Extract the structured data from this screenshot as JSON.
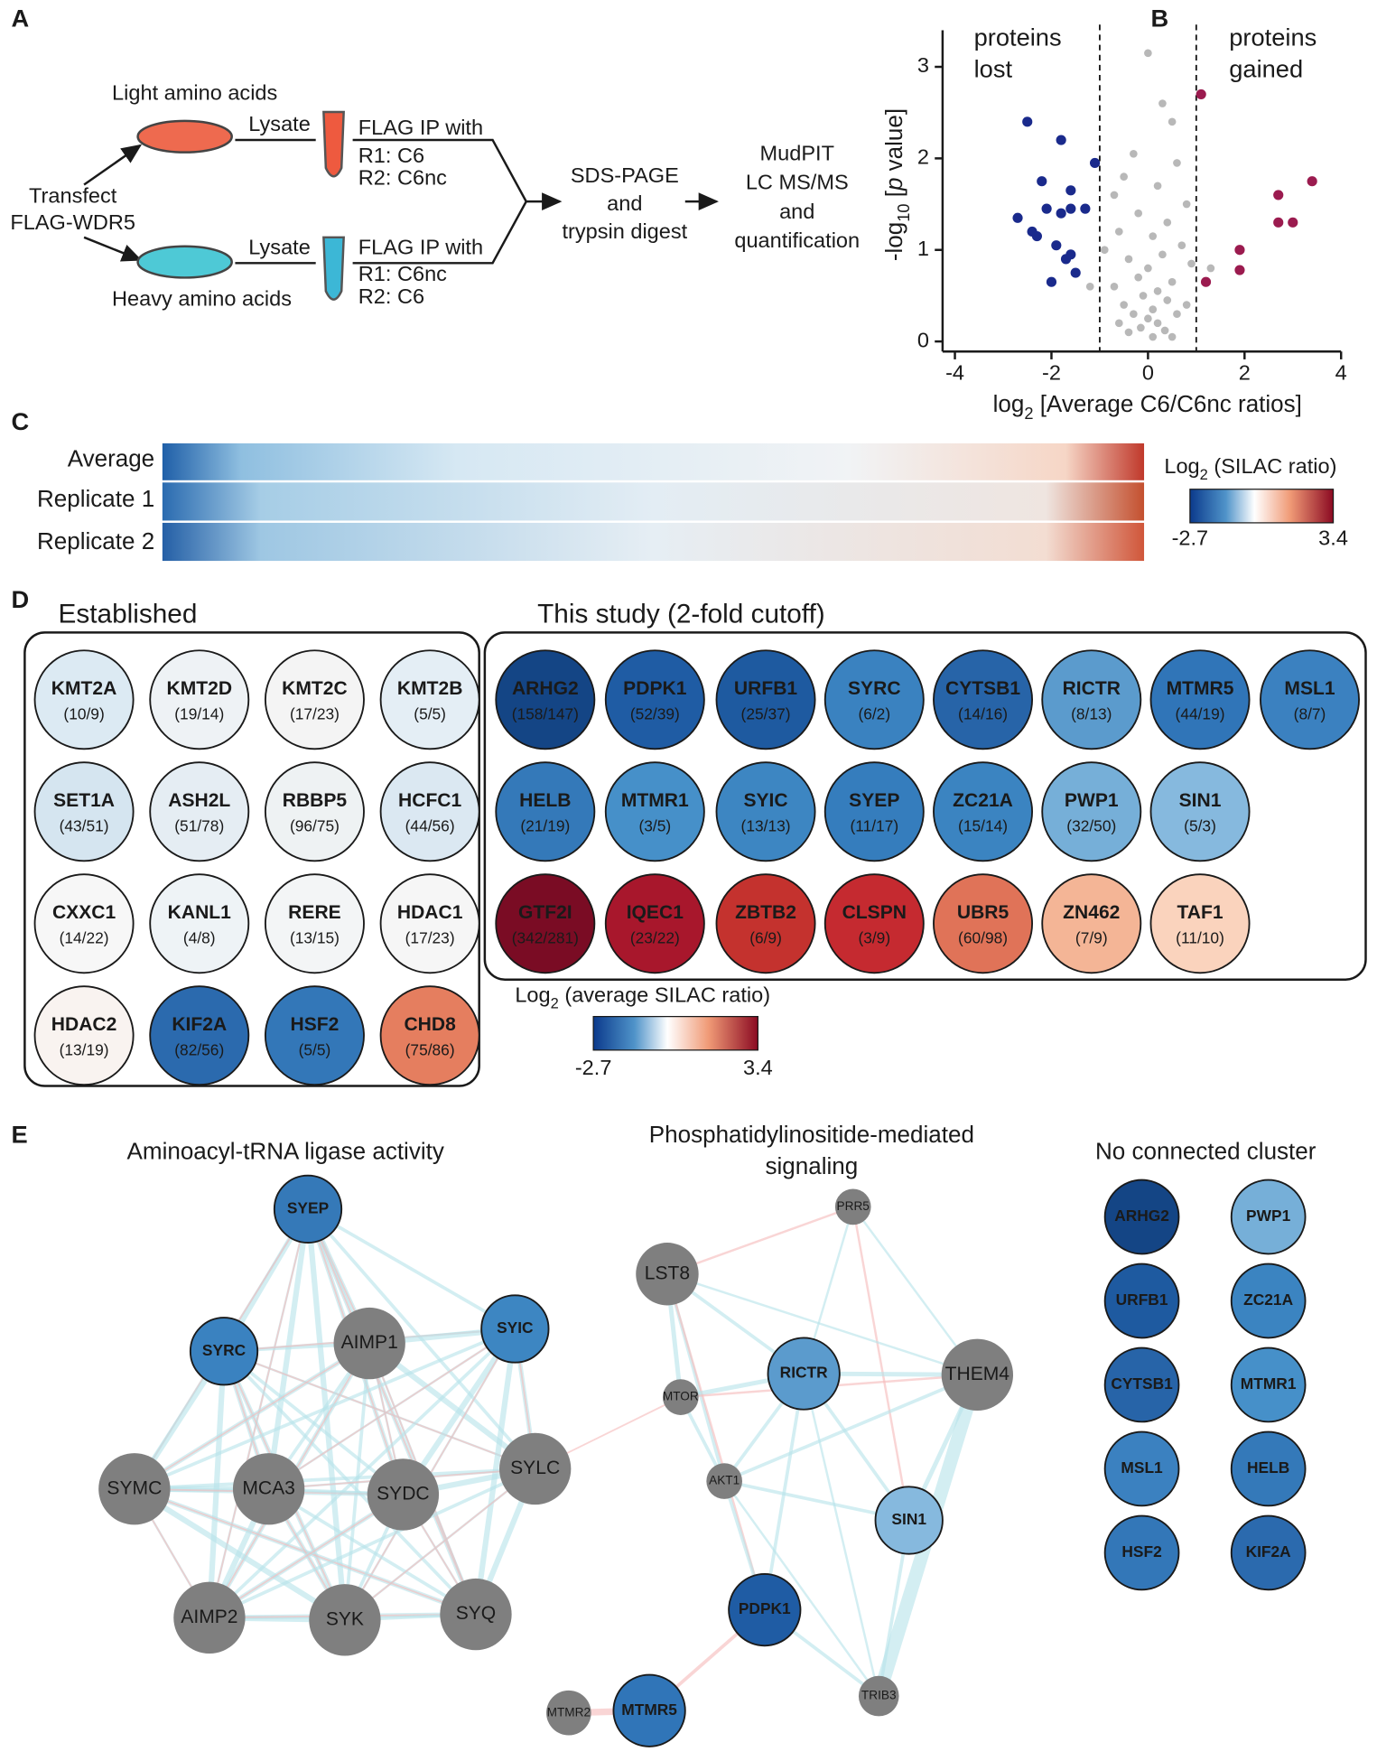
{
  "panel_labels": [
    "A",
    "B",
    "C",
    "D",
    "E"
  ],
  "panel_a": {
    "light": "Light amino acids",
    "heavy": "Heavy amino acids",
    "lysate_top": "Lysate",
    "lysate_bottom": "Lysate",
    "transfect": [
      "Transfect",
      "FLAG-WDR5"
    ],
    "ip_top": [
      "FLAG IP with",
      "R1: C6",
      "R2: C6nc"
    ],
    "ip_bottom": [
      "FLAG IP with",
      "R1: C6nc",
      "R2: C6"
    ],
    "sds": [
      "SDS-PAGE",
      "and",
      "trypsin digest"
    ],
    "mudpit": [
      "MudPIT",
      "LC MS/MS",
      "and",
      "quantification"
    ]
  },
  "chart_data": {
    "type": "scatter",
    "x_label": [
      "log",
      "2",
      " [Average C6/C6nc ratios]"
    ],
    "y_label": [
      "-log",
      "10",
      " [",
      "p",
      " value]"
    ],
    "annotations": [
      [
        "proteins",
        "lost"
      ],
      [
        "proteins",
        "gained"
      ]
    ],
    "thresholds": [
      -1,
      1
    ],
    "xlim": [
      -4,
      4
    ],
    "ylim": [
      0,
      3.4
    ],
    "xticks": [
      -4,
      -2,
      0,
      2,
      4
    ],
    "yticks": [
      0,
      1,
      2,
      3
    ],
    "series": [
      {
        "color": "#b8b8b8",
        "x": [
          0,
          0.5,
          0.3,
          -0.3,
          0.6,
          -0.5,
          0.2,
          -0.7,
          0.8,
          -0.2,
          0.4,
          -0.6,
          0.1,
          0.7,
          -0.9,
          0.3,
          -0.4,
          0.9,
          0,
          -0.2,
          0.5,
          -0.7,
          0.2,
          -0.1,
          0.4,
          -0.5,
          0.1,
          0.6,
          -0.3,
          0,
          0.2,
          -0.15,
          0.35,
          -0.4,
          0.1,
          0.5,
          -0.6,
          0.8,
          -1.2,
          1.3
        ],
        "values": [
          3.15,
          2.4,
          2.6,
          2.05,
          1.95,
          1.8,
          1.7,
          1.6,
          1.5,
          1.4,
          1.3,
          1.2,
          1.15,
          1.05,
          1.0,
          0.95,
          0.9,
          0.85,
          0.8,
          0.7,
          0.65,
          0.6,
          0.55,
          0.5,
          0.45,
          0.4,
          0.35,
          0.3,
          0.3,
          0.25,
          0.2,
          0.15,
          0.12,
          0.1,
          0.05,
          0.05,
          0.2,
          0.4,
          0.6,
          0.8
        ]
      },
      {
        "color": "#1a2a8c",
        "x": [
          -2.5,
          -1.8,
          -2.2,
          -1.6,
          -1.1,
          -2.7,
          -2.1,
          -1.8,
          -1.6,
          -1.3,
          -2.3,
          -1.9,
          -1.7,
          -1.6,
          -2.0,
          -1.5,
          -2.4
        ],
        "values": [
          2.4,
          2.2,
          1.75,
          1.65,
          1.95,
          1.35,
          1.45,
          1.4,
          1.45,
          1.45,
          1.15,
          1.05,
          0.9,
          0.95,
          0.65,
          0.75,
          1.2
        ]
      },
      {
        "color": "#9b1b4f",
        "x": [
          1.1,
          3.4,
          2.7,
          2.7,
          3.0,
          1.9,
          1.9,
          1.2
        ],
        "values": [
          2.7,
          1.75,
          1.6,
          1.3,
          1.3,
          1.0,
          0.78,
          0.65
        ]
      }
    ]
  },
  "panel_c": {
    "rows": [
      "Average",
      "Replicate 1",
      "Replicate 2"
    ],
    "colorbar": {
      "label": [
        "Log",
        "2",
        " (SILAC ratio)"
      ],
      "min": -2.7,
      "max": 3.4
    }
  },
  "panel_d": {
    "established": {
      "title": "Established",
      "nodes": [
        {
          "name": "KMT2A",
          "counts": "(10/9)",
          "color": "#dceaf3"
        },
        {
          "name": "KMT2D",
          "counts": "(19/14)",
          "color": "#eef2f5"
        },
        {
          "name": "KMT2C",
          "counts": "(17/23)",
          "color": "#f4f4f4"
        },
        {
          "name": "KMT2B",
          "counts": "(5/5)",
          "color": "#e4eef5"
        },
        {
          "name": "SET1A",
          "counts": "(43/51)",
          "color": "#d5e5f0"
        },
        {
          "name": "ASH2L",
          "counts": "(51/78)",
          "color": "#e5edf3"
        },
        {
          "name": "RBBP5",
          "counts": "(96/75)",
          "color": "#eef2f3"
        },
        {
          "name": "HCFC1",
          "counts": "(44/56)",
          "color": "#dbe8f2"
        },
        {
          "name": "CXXC1",
          "counts": "(14/22)",
          "color": "#f7f7f7"
        },
        {
          "name": "KANL1",
          "counts": "(4/8)",
          "color": "#eef3f6"
        },
        {
          "name": "RERE",
          "counts": "(13/15)",
          "color": "#f3f5f6"
        },
        {
          "name": "HDAC1",
          "counts": "(17/23)",
          "color": "#f6f6f6"
        },
        {
          "name": "HDAC2",
          "counts": "(13/19)",
          "color": "#f9f3f0"
        },
        {
          "name": "KIF2A",
          "counts": "(82/56)",
          "color": "#2b6aae"
        },
        {
          "name": "HSF2",
          "counts": "(5/5)",
          "color": "#3377b8"
        },
        {
          "name": "CHD8",
          "counts": "(75/86)",
          "color": "#e57e5f"
        }
      ]
    },
    "study": {
      "title": "This study (2-fold cutoff)",
      "nodes": [
        {
          "name": "ARHG2",
          "counts": "(158/147)",
          "color": "#144585"
        },
        {
          "name": "PDPK1",
          "counts": "(52/39)",
          "color": "#1f5ca4"
        },
        {
          "name": "URFB1",
          "counts": "(25/37)",
          "color": "#1e5aa0"
        },
        {
          "name": "SYRC",
          "counts": "(6/2)",
          "color": "#3a82c0"
        },
        {
          "name": "CYTSB1",
          "counts": "(14/16)",
          "color": "#2764a8"
        },
        {
          "name": "RICTR",
          "counts": "(8/13)",
          "color": "#5b9bcd"
        },
        {
          "name": "MTMR5",
          "counts": "(44/19)",
          "color": "#3075b8"
        },
        {
          "name": "MSL1",
          "counts": "(8/7)",
          "color": "#3b81c0"
        },
        {
          "name": "HELB",
          "counts": "(21/19)",
          "color": "#3479b9"
        },
        {
          "name": "MTMR1",
          "counts": "(3/5)",
          "color": "#4690c9"
        },
        {
          "name": "SYIC",
          "counts": "(13/13)",
          "color": "#3d86c2"
        },
        {
          "name": "SYEP",
          "counts": "(11/17)",
          "color": "#357dbd"
        },
        {
          "name": "ZC21A",
          "counts": "(15/14)",
          "color": "#3b84c1"
        },
        {
          "name": "PWP1",
          "counts": "(32/50)",
          "color": "#76afd8"
        },
        {
          "name": "SIN1",
          "counts": "(5/3)",
          "color": "#86b9de"
        },
        {
          "name": "GTF2I",
          "counts": "(342/281)",
          "color": "#7a0c24"
        },
        {
          "name": "IQEC1",
          "counts": "(23/22)",
          "color": "#a8172c"
        },
        {
          "name": "ZBTB2",
          "counts": "(6/9)",
          "color": "#c4322e"
        },
        {
          "name": "CLSPN",
          "counts": "(3/9)",
          "color": "#c52a30"
        },
        {
          "name": "UBR5",
          "counts": "(60/98)",
          "color": "#e07358"
        },
        {
          "name": "ZN462",
          "counts": "(7/9)",
          "color": "#f4b596"
        },
        {
          "name": "TAF1",
          "counts": "(11/10)",
          "color": "#fad3bd"
        }
      ]
    },
    "colorbar": {
      "label": [
        "Log",
        "2",
        " (average SILAC ratio)"
      ],
      "min": -2.7,
      "max": 3.4
    }
  },
  "panel_e": {
    "clusters": [
      {
        "title": [
          "Aminoacyl-tRNA ligase activity"
        ],
        "nodes": [
          {
            "label": "SYEP",
            "color": "#3579b8"
          },
          {
            "label": "SYRC",
            "color": "#3a82c0"
          },
          {
            "label": "AIMP1",
            "color": "#7f7f7f"
          },
          {
            "label": "SYIC",
            "color": "#3d86c2"
          },
          {
            "label": "SYMC",
            "color": "#7f7f7f"
          },
          {
            "label": "MCA3",
            "color": "#7f7f7f"
          },
          {
            "label": "SYDC",
            "color": "#7f7f7f"
          },
          {
            "label": "SYLC",
            "color": "#7f7f7f"
          },
          {
            "label": "AIMP2",
            "color": "#7f7f7f"
          },
          {
            "label": "SYK",
            "color": "#7f7f7f"
          },
          {
            "label": "SYQ",
            "color": "#7f7f7f"
          }
        ]
      },
      {
        "title": [
          "Phosphatidylinositide-mediated",
          "signaling"
        ],
        "nodes": [
          {
            "label": "PRR5",
            "color": "#7f7f7f"
          },
          {
            "label": "LST8",
            "color": "#7f7f7f"
          },
          {
            "label": "MTOR",
            "color": "#7f7f7f"
          },
          {
            "label": "RICTR",
            "color": "#5b9bcd"
          },
          {
            "label": "THEM4",
            "color": "#7f7f7f"
          },
          {
            "label": "AKT1",
            "color": "#7f7f7f"
          },
          {
            "label": "SIN1",
            "color": "#86b9de"
          },
          {
            "label": "PDPK1",
            "color": "#1f5ca4"
          },
          {
            "label": "TRIB3",
            "color": "#7f7f7f"
          },
          {
            "label": "MTMR2",
            "color": "#7f7f7f"
          },
          {
            "label": "MTMR5",
            "color": "#3075b8"
          }
        ]
      },
      {
        "title": [
          "No connected cluster"
        ],
        "nodes": [
          {
            "label": "ARHG2",
            "color": "#144585"
          },
          {
            "label": "URFB1",
            "color": "#1e5aa0"
          },
          {
            "label": "CYTSB1",
            "color": "#2764a8"
          },
          {
            "label": "MSL1",
            "color": "#3b81c0"
          },
          {
            "label": "HSF2",
            "color": "#3377b8"
          },
          {
            "label": "PWP1",
            "color": "#76afd8"
          },
          {
            "label": "ZC21A",
            "color": "#3b84c1"
          },
          {
            "label": "MTMR1",
            "color": "#4690c9"
          },
          {
            "label": "HELB",
            "color": "#3479b9"
          },
          {
            "label": "KIF2A",
            "color": "#2b6aae"
          }
        ]
      }
    ]
  }
}
